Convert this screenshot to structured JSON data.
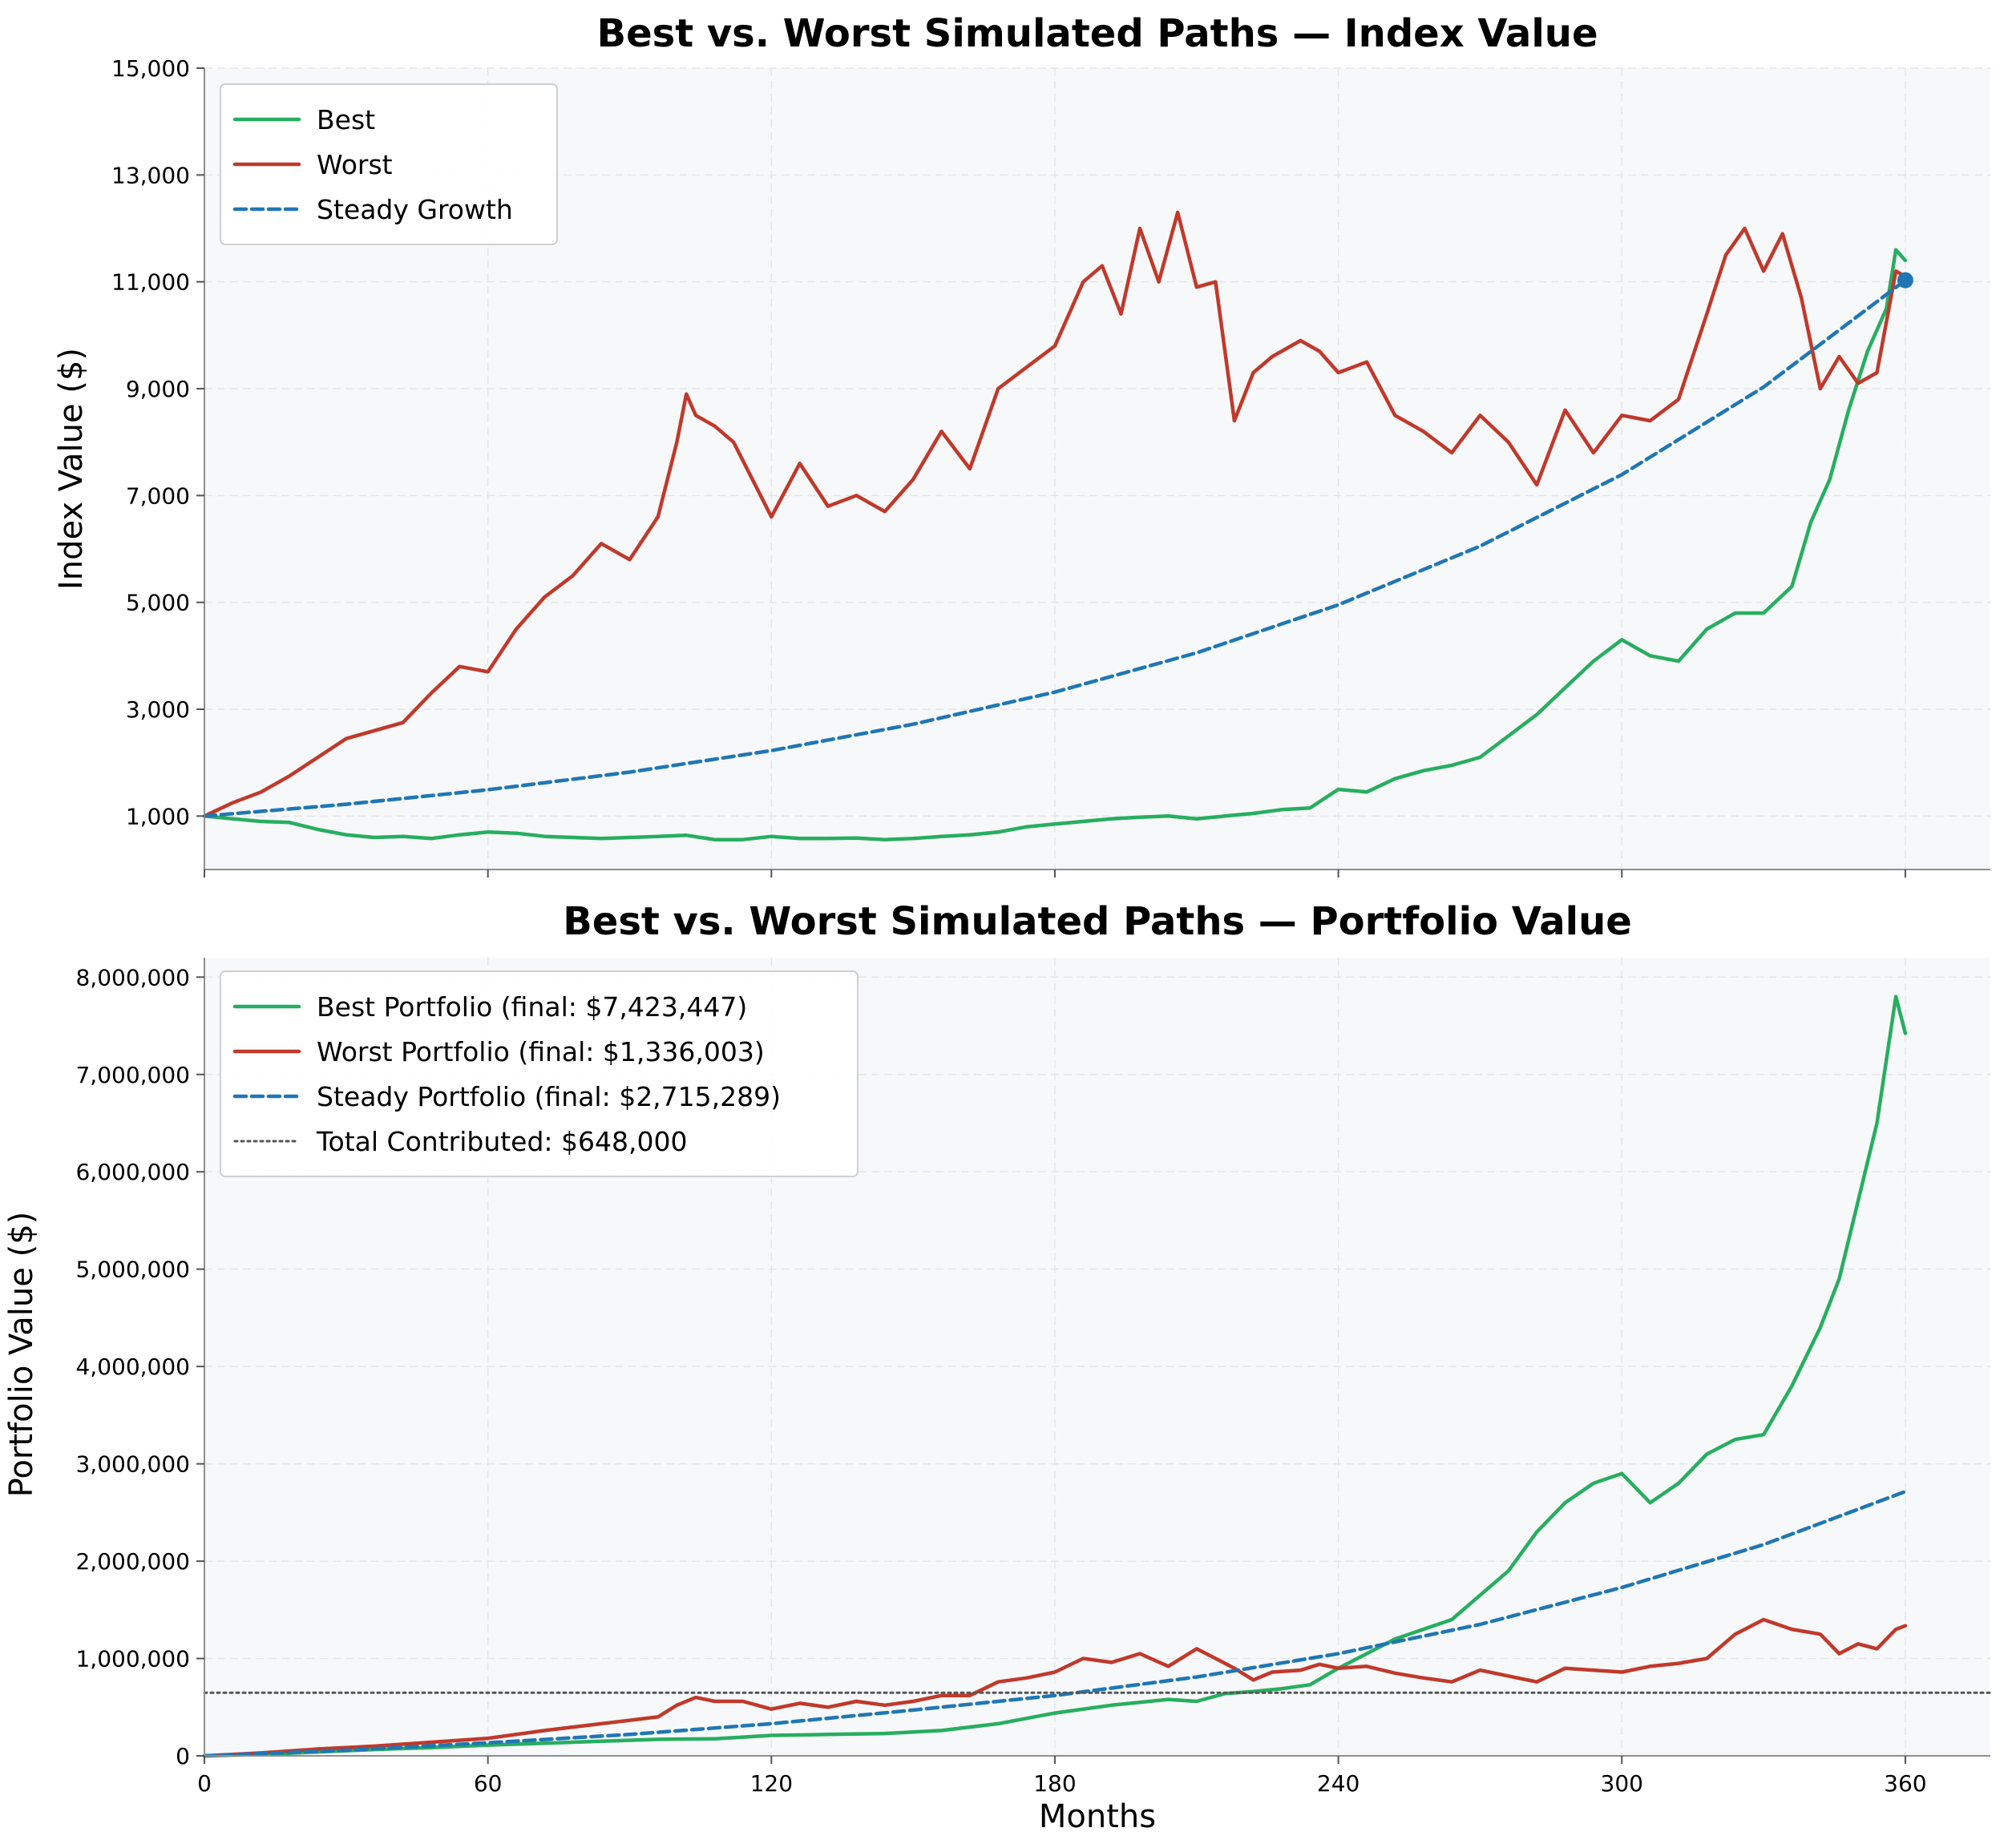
{
  "chart_data": [
    {
      "type": "line",
      "title": "Best vs. Worst Simulated Paths — Index Value",
      "xlabel": "",
      "ylabel": "Index Value ($)",
      "xlim": [
        0,
        378
      ],
      "ylim": [
        0,
        15000
      ],
      "xticks": [
        0,
        60,
        120,
        180,
        240,
        300,
        360
      ],
      "xtick_labels": [
        "",
        "",
        "",
        "",
        "",
        "",
        ""
      ],
      "yticks": [
        1000,
        3000,
        5000,
        7000,
        9000,
        11000,
        13000,
        15000
      ],
      "ytick_labels": [
        "1,000",
        "3,000",
        "5,000",
        "7,000",
        "9,000",
        "11,000",
        "13,000",
        "15,000"
      ],
      "grid": true,
      "legend_location": "top-left",
      "series": [
        {
          "name": "Best",
          "color": "#27ae60",
          "style": "solid",
          "x": [
            0,
            6,
            12,
            18,
            24,
            30,
            36,
            42,
            48,
            54,
            60,
            66,
            72,
            78,
            84,
            90,
            96,
            102,
            108,
            114,
            120,
            126,
            132,
            138,
            144,
            150,
            156,
            162,
            168,
            174,
            180,
            186,
            192,
            198,
            204,
            210,
            216,
            222,
            228,
            234,
            240,
            246,
            252,
            258,
            264,
            270,
            276,
            282,
            288,
            294,
            300,
            306,
            312,
            318,
            324,
            330,
            336,
            340,
            344,
            348,
            352,
            356,
            358,
            360
          ],
          "values": [
            1000,
            950,
            900,
            880,
            750,
            650,
            600,
            620,
            580,
            650,
            700,
            680,
            620,
            600,
            580,
            600,
            620,
            640,
            560,
            560,
            620,
            580,
            580,
            590,
            560,
            580,
            620,
            650,
            700,
            800,
            850,
            900,
            950,
            980,
            1000,
            950,
            1000,
            1050,
            1120,
            1150,
            1500,
            1450,
            1700,
            1850,
            1950,
            2100,
            2500,
            2900,
            3400,
            3900,
            4300,
            4000,
            3900,
            4500,
            4800,
            4800,
            5300,
            6500,
            7300,
            8600,
            9700,
            10500,
            11600,
            11400
          ]
        },
        {
          "name": "Worst",
          "color": "#c0392b",
          "style": "solid",
          "x": [
            0,
            6,
            12,
            18,
            24,
            30,
            36,
            42,
            48,
            54,
            60,
            66,
            72,
            78,
            84,
            90,
            96,
            100,
            102,
            104,
            108,
            112,
            116,
            120,
            126,
            132,
            138,
            144,
            150,
            156,
            162,
            168,
            174,
            180,
            186,
            190,
            194,
            198,
            202,
            206,
            210,
            214,
            218,
            222,
            226,
            232,
            236,
            240,
            246,
            252,
            258,
            264,
            270,
            276,
            282,
            288,
            294,
            300,
            306,
            312,
            318,
            322,
            326,
            330,
            334,
            338,
            342,
            346,
            350,
            354,
            358,
            360
          ],
          "values": [
            1000,
            1250,
            1450,
            1750,
            2100,
            2450,
            2600,
            2750,
            3300,
            3800,
            3700,
            4500,
            5100,
            5500,
            6100,
            5800,
            6600,
            8000,
            8900,
            8500,
            8300,
            8000,
            7300,
            6600,
            7600,
            6800,
            7000,
            6700,
            7300,
            8200,
            7500,
            9000,
            9400,
            9800,
            11000,
            11300,
            10400,
            12000,
            11000,
            12300,
            10900,
            11000,
            8400,
            9300,
            9600,
            9900,
            9700,
            9300,
            9500,
            8500,
            8200,
            7800,
            8500,
            8000,
            7200,
            8600,
            7800,
            8500,
            8400,
            8800,
            10400,
            11500,
            12000,
            11200,
            11900,
            10700,
            9000,
            9600,
            9100,
            9300,
            11200,
            11100
          ]
        },
        {
          "name": "Steady Growth",
          "color": "#1f77b4",
          "style": "dashed",
          "x": [
            0,
            30,
            60,
            90,
            120,
            150,
            180,
            210,
            240,
            270,
            300,
            330,
            360
          ],
          "values": [
            1000,
            1221,
            1492,
            1822,
            2226,
            2719,
            3321,
            4056,
            4955,
            6052,
            7392,
            9030,
            11030
          ]
        }
      ],
      "end_marker": {
        "x": 360,
        "y": 11030,
        "color": "#1f77b4"
      }
    },
    {
      "type": "line",
      "title": "Best vs. Worst Simulated Paths — Portfolio Value",
      "xlabel": "Months",
      "ylabel": "Portfolio Value ($)",
      "xlim": [
        0,
        378
      ],
      "ylim": [
        0,
        8200000
      ],
      "xticks": [
        0,
        60,
        120,
        180,
        240,
        300,
        360
      ],
      "xtick_labels": [
        "0",
        "60",
        "120",
        "180",
        "240",
        "300",
        "360"
      ],
      "yticks": [
        0,
        1000000,
        2000000,
        3000000,
        4000000,
        5000000,
        6000000,
        7000000,
        8000000
      ],
      "ytick_labels": [
        "0",
        "1,000,000",
        "2,000,000",
        "3,000,000",
        "4,000,000",
        "5,000,000",
        "6,000,000",
        "7,000,000",
        "8,000,000"
      ],
      "grid": true,
      "legend_location": "top-left",
      "series": [
        {
          "name": "Best Portfolio (final: $7,423,447)",
          "color": "#27ae60",
          "style": "solid",
          "x": [
            0,
            12,
            24,
            36,
            48,
            60,
            72,
            84,
            96,
            108,
            120,
            132,
            144,
            156,
            168,
            180,
            192,
            204,
            210,
            216,
            222,
            228,
            234,
            240,
            246,
            252,
            258,
            264,
            270,
            276,
            282,
            288,
            294,
            300,
            306,
            312,
            318,
            324,
            330,
            336,
            342,
            346,
            350,
            354,
            358,
            360
          ],
          "values": [
            0,
            15000,
            40000,
            65000,
            85000,
            110000,
            130000,
            150000,
            170000,
            175000,
            210000,
            220000,
            230000,
            260000,
            330000,
            440000,
            520000,
            580000,
            560000,
            640000,
            660000,
            690000,
            730000,
            900000,
            1050000,
            1200000,
            1300000,
            1400000,
            1650000,
            1900000,
            2300000,
            2600000,
            2800000,
            2900000,
            2600000,
            2800000,
            3100000,
            3250000,
            3300000,
            3800000,
            4400000,
            4900000,
            5700000,
            6500000,
            7800000,
            7423447
          ]
        },
        {
          "name": "Worst Portfolio (final: $1,336,003)",
          "color": "#c0392b",
          "style": "solid",
          "x": [
            0,
            12,
            24,
            36,
            48,
            60,
            72,
            84,
            96,
            100,
            104,
            108,
            114,
            120,
            126,
            132,
            138,
            144,
            150,
            156,
            162,
            168,
            174,
            180,
            186,
            192,
            198,
            204,
            210,
            214,
            218,
            222,
            226,
            232,
            236,
            240,
            246,
            252,
            258,
            264,
            270,
            276,
            282,
            288,
            294,
            300,
            306,
            312,
            318,
            324,
            330,
            336,
            342,
            346,
            350,
            354,
            358,
            360
          ],
          "values": [
            0,
            30000,
            70000,
            100000,
            140000,
            180000,
            260000,
            330000,
            400000,
            520000,
            600000,
            560000,
            560000,
            480000,
            540000,
            500000,
            560000,
            520000,
            560000,
            620000,
            620000,
            760000,
            800000,
            860000,
            1000000,
            960000,
            1050000,
            920000,
            1100000,
            1000000,
            900000,
            780000,
            860000,
            880000,
            940000,
            900000,
            920000,
            850000,
            800000,
            760000,
            880000,
            820000,
            760000,
            900000,
            880000,
            860000,
            920000,
            950000,
            1000000,
            1250000,
            1400000,
            1300000,
            1250000,
            1050000,
            1150000,
            1100000,
            1300000,
            1336003
          ]
        },
        {
          "name": "Steady Portfolio (final: $2,715,289)",
          "color": "#1f77b4",
          "style": "dashed",
          "x": [
            0,
            30,
            60,
            90,
            120,
            150,
            180,
            210,
            240,
            270,
            300,
            330,
            360
          ],
          "values": [
            0,
            58000,
            134000,
            220000,
            330000,
            470000,
            620000,
            810000,
            1050000,
            1350000,
            1730000,
            2170000,
            2715289
          ]
        },
        {
          "name": "Total Contributed: $648,000",
          "color": "#555555",
          "style": "dotted",
          "x": [
            0,
            378
          ],
          "values": [
            648000,
            648000
          ]
        }
      ]
    }
  ]
}
